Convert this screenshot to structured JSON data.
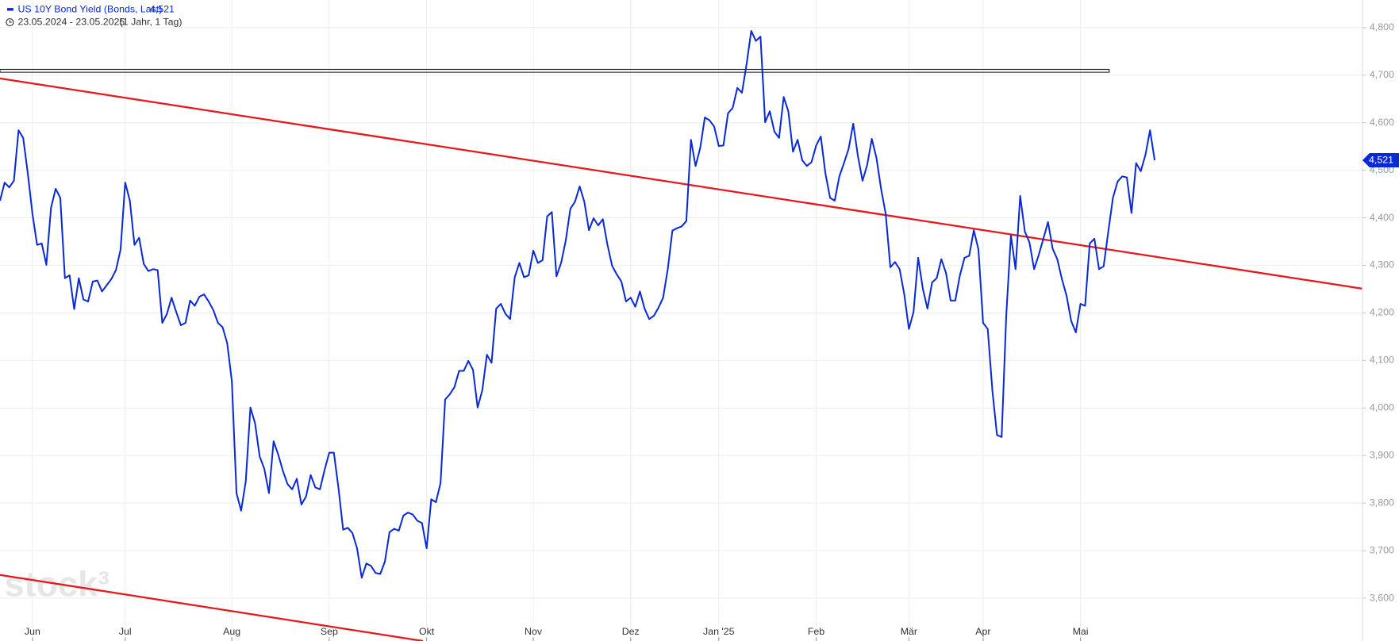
{
  "chart_data": {
    "type": "line",
    "legend_title": "US 10Y Bond Yield (Bonds, Last)",
    "current_label": "4,521",
    "date_range": "23.05.2024 - 23.05.2025",
    "period": "(1 Jahr, 1 Tag)",
    "watermark": "stock³",
    "series": [
      {
        "name": "US 10Y Bond Yield (Bonds, Last)",
        "color": "#0a2ad6",
        "values": [
          4.436,
          4.474,
          4.464,
          4.478,
          4.584,
          4.568,
          4.493,
          4.408,
          4.343,
          4.346,
          4.301,
          4.421,
          4.461,
          4.442,
          4.273,
          4.279,
          4.208,
          4.273,
          4.228,
          4.224,
          4.266,
          4.268,
          4.245,
          4.258,
          4.271,
          4.29,
          4.333,
          4.474,
          4.436,
          4.343,
          4.358,
          4.303,
          4.288,
          4.292,
          4.29,
          4.179,
          4.198,
          4.232,
          4.202,
          4.174,
          4.179,
          4.226,
          4.215,
          4.234,
          4.239,
          4.224,
          4.206,
          4.179,
          4.17,
          4.136,
          4.056,
          3.821,
          3.784,
          3.846,
          4.001,
          3.968,
          3.898,
          3.872,
          3.821,
          3.93,
          3.902,
          3.868,
          3.84,
          3.829,
          3.851,
          3.797,
          3.814,
          3.859,
          3.833,
          3.829,
          3.87,
          3.906,
          3.906,
          3.831,
          3.744,
          3.748,
          3.737,
          3.705,
          3.643,
          3.673,
          3.668,
          3.653,
          3.651,
          3.677,
          3.739,
          3.746,
          3.742,
          3.774,
          3.78,
          3.776,
          3.763,
          3.758,
          3.705,
          3.808,
          3.802,
          3.842,
          4.018,
          4.029,
          4.044,
          4.078,
          4.078,
          4.099,
          4.08,
          4.001,
          4.037,
          4.112,
          4.095,
          4.209,
          4.219,
          4.198,
          4.187,
          4.275,
          4.305,
          4.275,
          4.279,
          4.331,
          4.305,
          4.311,
          4.403,
          4.412,
          4.277,
          4.305,
          4.352,
          4.419,
          4.434,
          4.466,
          4.434,
          4.374,
          4.399,
          4.384,
          4.397,
          4.343,
          4.299,
          4.281,
          4.266,
          4.224,
          4.232,
          4.213,
          4.245,
          4.209,
          4.187,
          4.194,
          4.211,
          4.232,
          4.292,
          4.373,
          4.378,
          4.382,
          4.393,
          4.564,
          4.509,
          4.547,
          4.611,
          4.605,
          4.592,
          4.551,
          4.552,
          4.62,
          4.631,
          4.673,
          4.663,
          4.723,
          4.793,
          4.772,
          4.781,
          4.601,
          4.624,
          4.581,
          4.568,
          4.654,
          4.624,
          4.539,
          4.564,
          4.521,
          4.509,
          4.517,
          4.552,
          4.571,
          4.493,
          4.442,
          4.436,
          4.487,
          4.515,
          4.545,
          4.598,
          4.53,
          4.478,
          4.511,
          4.566,
          4.526,
          4.461,
          4.408,
          4.296,
          4.307,
          4.292,
          4.239,
          4.166,
          4.202,
          4.316,
          4.251,
          4.209,
          4.264,
          4.273,
          4.313,
          4.284,
          4.226,
          4.226,
          4.279,
          4.316,
          4.32,
          4.374,
          4.333,
          4.179,
          4.166,
          4.037,
          3.943,
          3.939,
          4.196,
          4.363,
          4.292,
          4.446,
          4.371,
          4.348,
          4.292,
          4.322,
          4.356,
          4.391,
          4.335,
          4.313,
          4.271,
          4.236,
          4.183,
          4.159,
          4.219,
          4.215,
          4.346,
          4.356,
          4.292,
          4.298,
          4.371,
          4.442,
          4.476,
          4.487,
          4.485,
          4.41,
          4.515,
          4.498,
          4.532,
          4.584,
          4.521
        ]
      }
    ],
    "xlim": [
      0,
      293.8
    ],
    "xticks": [
      {
        "value": 7,
        "label": "Jun"
      },
      {
        "value": 27,
        "label": "Jul"
      },
      {
        "value": 50,
        "label": "Aug"
      },
      {
        "value": 71,
        "label": "Sep"
      },
      {
        "value": 92,
        "label": "Okt"
      },
      {
        "value": 115,
        "label": "Nov"
      },
      {
        "value": 136,
        "label": "Dez"
      },
      {
        "value": 155,
        "label": "Jan '25"
      },
      {
        "value": 176,
        "label": "Feb"
      },
      {
        "value": 196,
        "label": "Mär"
      },
      {
        "value": 212,
        "label": "Apr"
      },
      {
        "value": 233,
        "label": "Mai"
      }
    ],
    "ylim": [
      3.51,
      4.858
    ],
    "yticks": [
      {
        "value": 3.6,
        "label": "3,600"
      },
      {
        "value": 3.7,
        "label": "3,700"
      },
      {
        "value": 3.8,
        "label": "3,800"
      },
      {
        "value": 3.9,
        "label": "3,900"
      },
      {
        "value": 4.0,
        "label": "4,000"
      },
      {
        "value": 4.1,
        "label": "4,100"
      },
      {
        "value": 4.2,
        "label": "4,200"
      },
      {
        "value": 4.3,
        "label": "4,300"
      },
      {
        "value": 4.4,
        "label": "4,400"
      },
      {
        "value": 4.5,
        "label": "4,500"
      },
      {
        "value": 4.6,
        "label": "4,600"
      },
      {
        "value": 4.7,
        "label": "4,700"
      },
      {
        "value": 4.8,
        "label": "4,800"
      }
    ],
    "grid": true,
    "trendlines": [
      {
        "color": "#e8151b",
        "x": [
          0,
          293.8
        ],
        "y": [
          4.693,
          4.251
        ]
      },
      {
        "color": "#e8151b",
        "x": [
          0,
          91.2
        ],
        "y": [
          3.649,
          3.51
        ]
      }
    ],
    "rectangles": [
      {
        "color": "#222",
        "x": [
          0,
          239.2
        ],
        "y": [
          4.706,
          4.712
        ]
      }
    ]
  }
}
